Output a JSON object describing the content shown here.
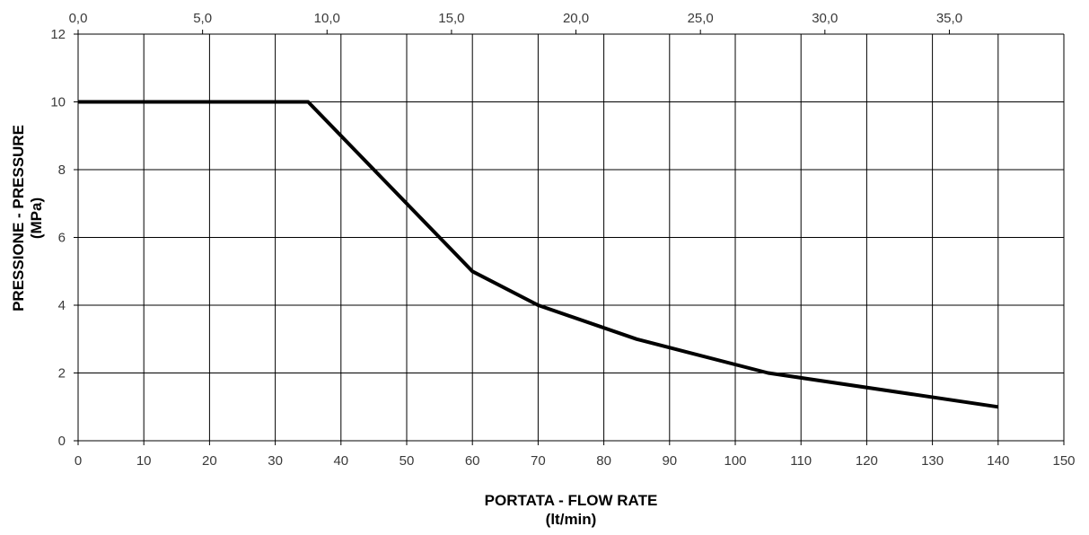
{
  "chart_data": {
    "type": "line",
    "xlabel": "PORTATA - FLOW RATE",
    "xlabel_unit": "(lt/min)",
    "ylabel": "PRESSIONE - PRESSURE",
    "ylabel_unit": "(MPa)",
    "xlim": [
      0,
      150
    ],
    "ylim": [
      0,
      12
    ],
    "x_ticks": [
      0,
      10,
      20,
      30,
      40,
      50,
      60,
      70,
      80,
      90,
      100,
      110,
      120,
      130,
      140,
      150
    ],
    "x_tick_labels": [
      "0",
      "10",
      "20",
      "30",
      "40",
      "50",
      "60",
      "70",
      "80",
      "90",
      "100",
      "110",
      "120",
      "130",
      "140",
      "150"
    ],
    "y_ticks": [
      0,
      2,
      4,
      6,
      8,
      10,
      12
    ],
    "y_tick_labels": [
      "0",
      "2",
      "4",
      "6",
      "8",
      "10",
      "12"
    ],
    "x2_axis": {
      "position": "top",
      "lim": [
        0,
        39.6
      ],
      "ticks": [
        0,
        5,
        10,
        15,
        20,
        25,
        30,
        35
      ],
      "tick_labels": [
        "0,0",
        "5,0",
        "10,0",
        "15,0",
        "20,0",
        "25,0",
        "30,0",
        "35,0"
      ]
    },
    "grid": true,
    "series": [
      {
        "color": "#000000",
        "x": [
          0,
          35,
          60,
          70,
          85,
          105,
          140
        ],
        "y": [
          10,
          10,
          5,
          4,
          3,
          2,
          1
        ]
      }
    ]
  }
}
